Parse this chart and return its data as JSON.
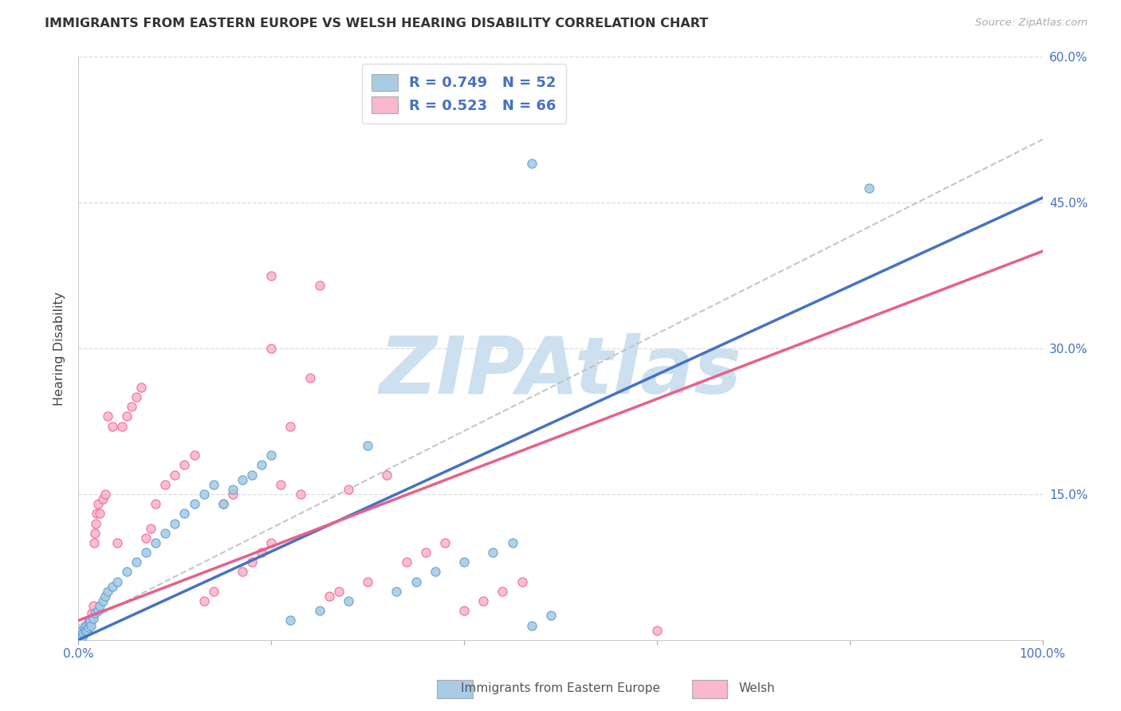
{
  "title": "IMMIGRANTS FROM EASTERN EUROPE VS WELSH HEARING DISABILITY CORRELATION CHART",
  "source": "Source: ZipAtlas.com",
  "ylabel": "Hearing Disability",
  "legend_label1": "Immigrants from Eastern Europe",
  "legend_label2": "Welsh",
  "R1": 0.749,
  "N1": 52,
  "R2": 0.523,
  "N2": 66,
  "color_blue_fill": "#a8cce4",
  "color_pink_fill": "#f9b8cb",
  "color_blue_edge": "#5b9bd5",
  "color_pink_edge": "#f06090",
  "color_blue_line": "#4472c4",
  "color_pink_line": "#e8608a",
  "color_gray_dashed": "#c0c0c0",
  "watermark_color": "#cce0f0",
  "xlim": [
    0,
    100
  ],
  "ylim": [
    0,
    60
  ],
  "ytick_vals": [
    15,
    30,
    45,
    60
  ],
  "blue_trend_slope": 0.455,
  "blue_trend_intercept": 0.0,
  "pink_trend_slope": 0.38,
  "pink_trend_intercept": 2.0,
  "gray_slope": 0.5,
  "gray_intercept": 1.5,
  "blue_x": [
    0.1,
    0.2,
    0.3,
    0.4,
    0.5,
    0.6,
    0.7,
    0.8,
    0.9,
    1.0,
    1.1,
    1.2,
    1.3,
    1.5,
    1.7,
    2.0,
    2.2,
    2.5,
    2.8,
    3.0,
    3.5,
    4.0,
    5.0,
    6.0,
    7.0,
    8.0,
    9.0,
    10.0,
    11.0,
    12.0,
    13.0,
    14.0,
    15.0,
    16.0,
    17.0,
    18.0,
    19.0,
    20.0,
    22.0,
    25.0,
    28.0,
    30.0,
    33.0,
    35.0,
    37.0,
    40.0,
    43.0,
    45.0,
    47.0,
    49.0,
    82.0,
    47.0
  ],
  "blue_y": [
    0.5,
    0.8,
    1.0,
    0.3,
    0.7,
    1.2,
    0.9,
    1.5,
    1.0,
    1.3,
    1.8,
    2.0,
    1.5,
    2.2,
    2.8,
    3.0,
    3.5,
    4.0,
    4.5,
    5.0,
    5.5,
    6.0,
    7.0,
    8.0,
    9.0,
    10.0,
    11.0,
    12.0,
    13.0,
    14.0,
    15.0,
    16.0,
    14.0,
    15.5,
    16.5,
    17.0,
    18.0,
    19.0,
    2.0,
    3.0,
    4.0,
    20.0,
    5.0,
    6.0,
    7.0,
    8.0,
    9.0,
    10.0,
    1.5,
    2.5,
    46.5,
    49.0
  ],
  "pink_x": [
    0.1,
    0.2,
    0.3,
    0.4,
    0.5,
    0.6,
    0.7,
    0.8,
    0.9,
    1.0,
    1.1,
    1.2,
    1.3,
    1.4,
    1.5,
    1.6,
    1.7,
    1.8,
    1.9,
    2.0,
    2.2,
    2.5,
    2.8,
    3.0,
    3.5,
    4.0,
    4.5,
    5.0,
    5.5,
    6.0,
    6.5,
    7.0,
    7.5,
    8.0,
    9.0,
    10.0,
    11.0,
    12.0,
    13.0,
    14.0,
    15.0,
    16.0,
    17.0,
    18.0,
    19.0,
    20.0,
    21.0,
    22.0,
    23.0,
    24.0,
    25.0,
    26.0,
    27.0,
    28.0,
    30.0,
    32.0,
    34.0,
    36.0,
    38.0,
    40.0,
    42.0,
    44.0,
    46.0,
    60.0,
    20.0,
    20.0
  ],
  "pink_y": [
    0.3,
    0.5,
    0.8,
    1.0,
    0.5,
    0.8,
    1.2,
    1.5,
    1.0,
    1.8,
    2.0,
    1.5,
    2.2,
    2.8,
    3.5,
    10.0,
    11.0,
    12.0,
    13.0,
    14.0,
    13.0,
    14.5,
    15.0,
    23.0,
    22.0,
    10.0,
    22.0,
    23.0,
    24.0,
    25.0,
    26.0,
    10.5,
    11.5,
    14.0,
    16.0,
    17.0,
    18.0,
    19.0,
    4.0,
    5.0,
    14.0,
    15.0,
    7.0,
    8.0,
    9.0,
    10.0,
    16.0,
    22.0,
    15.0,
    27.0,
    36.5,
    4.5,
    5.0,
    15.5,
    6.0,
    17.0,
    8.0,
    9.0,
    10.0,
    3.0,
    4.0,
    5.0,
    6.0,
    1.0,
    37.5,
    30.0
  ]
}
